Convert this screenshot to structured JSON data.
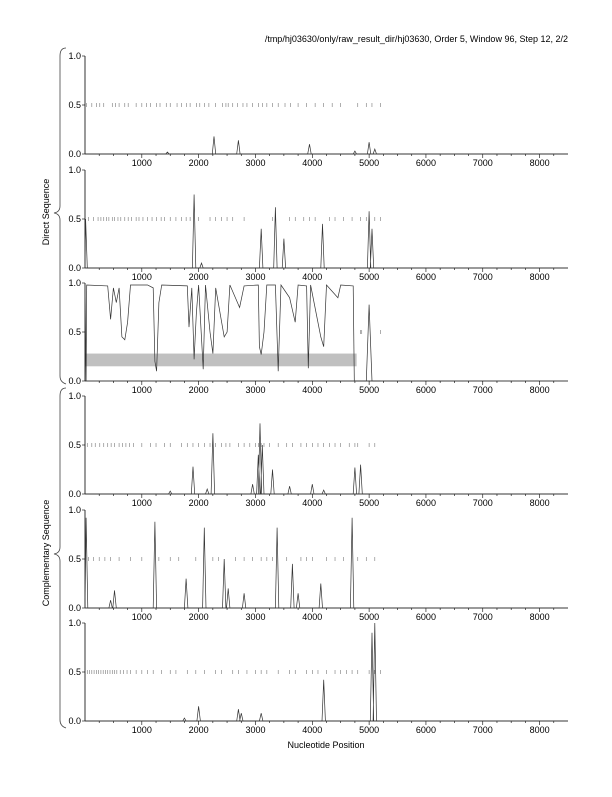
{
  "chart_data": {
    "type": "line",
    "title": "/tmp/hj03630/only/raw_result_dir/hj03630, Order 5, Window 96, Step 12, 2/2",
    "xlabel": "Nucleotide Position",
    "group_labels": [
      "Direct Sequence",
      "Complementary Sequence"
    ],
    "xlim": [
      0,
      8500
    ],
    "ylim": [
      0,
      1
    ],
    "x_ticks": [
      1000,
      2000,
      3000,
      4000,
      5000,
      6000,
      7000,
      8000
    ],
    "y_ticks": [
      "0.0",
      "0.5",
      "1.0"
    ],
    "panels": [
      {
        "group": "Direct Sequence",
        "peaks": [
          [
            1450,
            0.02
          ],
          [
            2270,
            0.18
          ],
          [
            2700,
            0.14
          ],
          [
            3950,
            0.1
          ],
          [
            4750,
            0.03
          ],
          [
            5000,
            0.12
          ],
          [
            5100,
            0.05
          ]
        ],
        "marks": [
          30,
          120,
          200,
          260,
          330,
          480,
          540,
          600,
          700,
          760,
          900,
          1000,
          1080,
          1150,
          1260,
          1320,
          1430,
          1500,
          1620,
          1700,
          1790,
          1850,
          1960,
          2020,
          2100,
          2180,
          2300,
          2420,
          2480,
          2520,
          2600,
          2680,
          2780,
          2850,
          2950,
          3050,
          3120,
          3200,
          3300,
          3400,
          3520,
          3620,
          3750,
          3900,
          4050,
          4200,
          4350,
          4500,
          4800,
          4950,
          5050,
          5200
        ]
      },
      {
        "group": "Direct Sequence",
        "peaks": [
          [
            10,
            0.5
          ],
          [
            1920,
            0.75
          ],
          [
            2050,
            0.05
          ],
          [
            3100,
            0.4
          ],
          [
            3350,
            0.62
          ],
          [
            3500,
            0.3
          ],
          [
            4180,
            0.45
          ],
          [
            5000,
            0.58
          ],
          [
            5050,
            0.4
          ]
        ],
        "marks": [
          60,
          150,
          230,
          280,
          330,
          380,
          420,
          480,
          520,
          580,
          630,
          700,
          760,
          820,
          900,
          950,
          1020,
          1100,
          1180,
          1260,
          1340,
          1400,
          1500,
          1600,
          1700,
          1780,
          1850,
          2000,
          2200,
          2300,
          2400,
          2500,
          2600,
          2800,
          3300,
          3600,
          3700,
          3850,
          3950,
          4050,
          4300,
          4400,
          4550,
          4700,
          4850,
          4950,
          5100,
          5200
        ]
      },
      {
        "group": "Direct Sequence",
        "points": [
          [
            0,
            1
          ],
          [
            20,
            0
          ],
          [
            30,
            0.98
          ],
          [
            400,
            0.97
          ],
          [
            450,
            0.63
          ],
          [
            500,
            0.95
          ],
          [
            550,
            0.8
          ],
          [
            600,
            0.95
          ],
          [
            650,
            0.45
          ],
          [
            700,
            0.42
          ],
          [
            750,
            0.6
          ],
          [
            800,
            0.98
          ],
          [
            1100,
            0.98
          ],
          [
            1200,
            0.95
          ],
          [
            1230,
            0.2
          ],
          [
            1260,
            0.1
          ],
          [
            1300,
            0.8
          ],
          [
            1350,
            0.98
          ],
          [
            1800,
            0.97
          ],
          [
            1830,
            0.55
          ],
          [
            1880,
            0.95
          ],
          [
            1920,
            0.22
          ],
          [
            1960,
            0.7
          ],
          [
            2000,
            0.98
          ],
          [
            2080,
            0.12
          ],
          [
            2120,
            0.98
          ],
          [
            2200,
            0.5
          ],
          [
            2250,
            0.28
          ],
          [
            2300,
            0.95
          ],
          [
            2450,
            0.45
          ],
          [
            2500,
            0.5
          ],
          [
            2550,
            0.98
          ],
          [
            2720,
            0.75
          ],
          [
            2800,
            0.97
          ],
          [
            3050,
            0.98
          ],
          [
            3070,
            0.35
          ],
          [
            3100,
            0.27
          ],
          [
            3150,
            0.5
          ],
          [
            3200,
            0.98
          ],
          [
            3350,
            0.98
          ],
          [
            3400,
            0.1
          ],
          [
            3450,
            0.98
          ],
          [
            3600,
            0.85
          ],
          [
            3700,
            0.6
          ],
          [
            3750,
            0.98
          ],
          [
            3900,
            0.97
          ],
          [
            3930,
            0.13
          ],
          [
            3970,
            0.98
          ],
          [
            4150,
            0.45
          ],
          [
            4200,
            0.35
          ],
          [
            4250,
            0.98
          ],
          [
            4450,
            0.85
          ],
          [
            4500,
            0.98
          ],
          [
            4720,
            0.97
          ],
          [
            4740,
            0
          ],
          [
            4950,
            0
          ],
          [
            5000,
            0.78
          ],
          [
            5050,
            0
          ],
          [
            5200,
            0
          ]
        ],
        "marks": [
          4850,
          4870,
          5200
        ],
        "band": {
          "x": [
            0,
            4780
          ],
          "y": [
            0.15,
            0.28
          ]
        }
      },
      {
        "group": "Complementary Sequence",
        "peaks": [
          [
            1500,
            0.03
          ],
          [
            1900,
            0.28
          ],
          [
            2150,
            0.05
          ],
          [
            2250,
            0.62
          ],
          [
            2950,
            0.1
          ],
          [
            3050,
            0.4
          ],
          [
            3080,
            0.72
          ],
          [
            3120,
            0.5
          ],
          [
            3300,
            0.25
          ],
          [
            3600,
            0.08
          ],
          [
            4000,
            0.1
          ],
          [
            4200,
            0.04
          ],
          [
            4750,
            0.27
          ],
          [
            4850,
            0.3
          ]
        ],
        "marks": [
          40,
          120,
          180,
          260,
          330,
          400,
          460,
          520,
          600,
          660,
          720,
          780,
          850,
          1000,
          1150,
          1250,
          1400,
          1500,
          1700,
          1800,
          1900,
          2000,
          2100,
          2200,
          2300,
          2400,
          2480,
          2550,
          2700,
          2800,
          2900,
          3000,
          3050,
          3100,
          3150,
          3250,
          3400,
          3550,
          3650,
          3800,
          3900,
          4000,
          4100,
          4200,
          4300,
          4400,
          4500,
          4650,
          4750,
          4800,
          5000,
          5100
        ]
      },
      {
        "group": "Complementary Sequence",
        "peaks": [
          [
            20,
            0.92
          ],
          [
            450,
            0.08
          ],
          [
            520,
            0.18
          ],
          [
            1230,
            0.88
          ],
          [
            1780,
            0.3
          ],
          [
            2100,
            0.82
          ],
          [
            2450,
            0.5
          ],
          [
            2520,
            0.2
          ],
          [
            2800,
            0.15
          ],
          [
            3380,
            0.82
          ],
          [
            3650,
            0.45
          ],
          [
            3750,
            0.15
          ],
          [
            4150,
            0.25
          ],
          [
            4700,
            0.92
          ]
        ],
        "marks": [
          60,
          150,
          250,
          350,
          450,
          600,
          800,
          1000,
          1300,
          1500,
          1650,
          1950,
          2250,
          2350,
          2650,
          2800,
          2950,
          3100,
          3200,
          3300,
          3550,
          3800,
          3900,
          4000,
          4250,
          4400,
          4550,
          4800,
          4950,
          5100
        ]
      },
      {
        "group": "Complementary Sequence",
        "peaks": [
          [
            1750,
            0.03
          ],
          [
            2000,
            0.15
          ],
          [
            2700,
            0.12
          ],
          [
            2750,
            0.08
          ],
          [
            3100,
            0.08
          ],
          [
            4200,
            0.42
          ],
          [
            5050,
            0.9
          ],
          [
            5100,
            1.0
          ]
        ],
        "marks": [
          40,
          80,
          120,
          160,
          200,
          240,
          280,
          320,
          360,
          400,
          440,
          480,
          520,
          560,
          620,
          680,
          740,
          800,
          900,
          1000,
          1100,
          1200,
          1350,
          1500,
          1600,
          1800,
          1950,
          2100,
          2300,
          2400,
          2600,
          2700,
          2850,
          3000,
          3100,
          3200,
          3400,
          3600,
          3700,
          3900,
          4000,
          4100,
          4250,
          4400,
          4500,
          4600,
          4700,
          4800,
          5000,
          5100,
          5200
        ]
      }
    ]
  }
}
